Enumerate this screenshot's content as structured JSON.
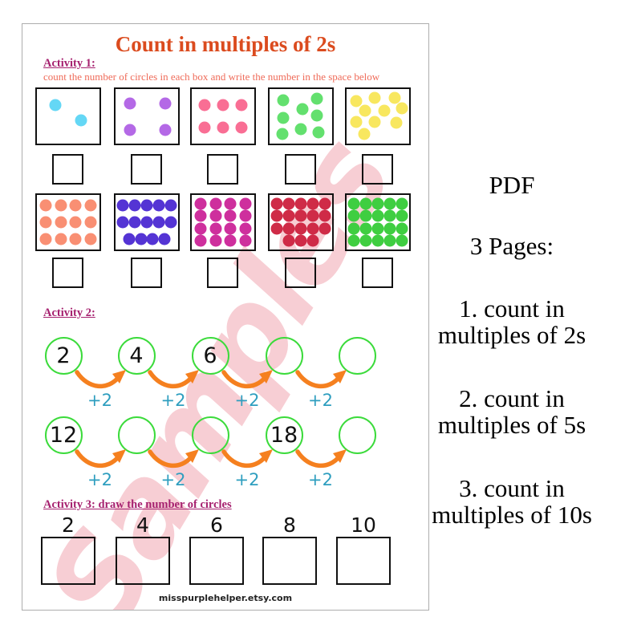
{
  "page": {
    "title": "Count in multiples of 2s",
    "watermark": "Samples",
    "footer": "misspurplehelper.etsy.com",
    "activity1": {
      "heading": "Activity 1:",
      "description": "count the number of circles in each box and write the number in the space below",
      "rows": [
        {
          "boxes": [
            {
              "count": 2,
              "color": "#64D7F5",
              "dots": [
                [
                  29,
                  29
                ],
                [
                  70,
                  58
                ]
              ]
            },
            {
              "count": 4,
              "color": "#B469E6",
              "dots": [
                [
                  23,
                  26
                ],
                [
                  79,
                  26
                ],
                [
                  23,
                  75
                ],
                [
                  79,
                  75
                ]
              ]
            },
            {
              "count": 6,
              "color": "#F96E94",
              "dots": [
                [
                  21,
                  30
                ],
                [
                  50,
                  30
                ],
                [
                  79,
                  30
                ],
                [
                  21,
                  70
                ],
                [
                  50,
                  70
                ],
                [
                  79,
                  70
                ]
              ]
            },
            {
              "count": 8,
              "color": "#63E06E",
              "dots": [
                [
                  22,
                  21
                ],
                [
                  76,
                  18
                ],
                [
                  52,
                  37
                ],
                [
                  22,
                  53
                ],
                [
                  76,
                  49
                ],
                [
                  20,
                  83
                ],
                [
                  50,
                  74
                ],
                [
                  78,
                  80
                ]
              ]
            },
            {
              "count": 10,
              "color": "#F8E75F",
              "dots": [
                [
                  15,
                  22
                ],
                [
                  45,
                  16
                ],
                [
                  77,
                  16
                ],
                [
                  30,
                  40
                ],
                [
                  60,
                  40
                ],
                [
                  88,
                  36
                ],
                [
                  15,
                  60
                ],
                [
                  45,
                  60
                ],
                [
                  79,
                  62
                ],
                [
                  28,
                  82
                ]
              ]
            }
          ],
          "answers": [
            "",
            "",
            "",
            "",
            ""
          ]
        },
        {
          "boxes": [
            {
              "count": 12,
              "color": "#F98F73",
              "grid": [
                4,
                4,
                4
              ]
            },
            {
              "count": 14,
              "color": "#5434D4",
              "grid": [
                5,
                5,
                4
              ]
            },
            {
              "count": 16,
              "color": "#CE2F9D",
              "grid": [
                4,
                4,
                4,
                4
              ]
            },
            {
              "count": 18,
              "color": "#CF2B47",
              "grid": [
                5,
                5,
                5,
                3
              ]
            },
            {
              "count": 20,
              "color": "#3FCE41",
              "grid": [
                5,
                5,
                5,
                5
              ]
            }
          ],
          "answers": [
            "",
            "",
            "",
            "",
            ""
          ]
        }
      ]
    },
    "activity2": {
      "heading": "Activity 2:",
      "arrow_label": "+2",
      "rows": [
        [
          "2",
          "4",
          "6",
          "",
          ""
        ],
        [
          "12",
          "",
          "",
          "18",
          ""
        ]
      ]
    },
    "activity3": {
      "heading": "Activity 3: draw the number of circles",
      "numbers": [
        "2",
        "4",
        "6",
        "8",
        "10"
      ]
    }
  },
  "side_panel": {
    "items": [
      "PDF",
      "3 Pages:",
      "1. count in\nmultiples of 2s",
      "2. count in\nmultiples of 5s",
      "3. count in\nmultiples of 10s"
    ]
  },
  "colors": {
    "title": "#DB4B1E",
    "heading": "#A6216F",
    "desc": "#EF6B59",
    "plus2": "#2E9EBF",
    "arrow": "#F5801F",
    "circle": "#3BDB3B",
    "watermark": "#F6C3CA",
    "ink": "#111111",
    "page_border": "#ADADAD"
  }
}
